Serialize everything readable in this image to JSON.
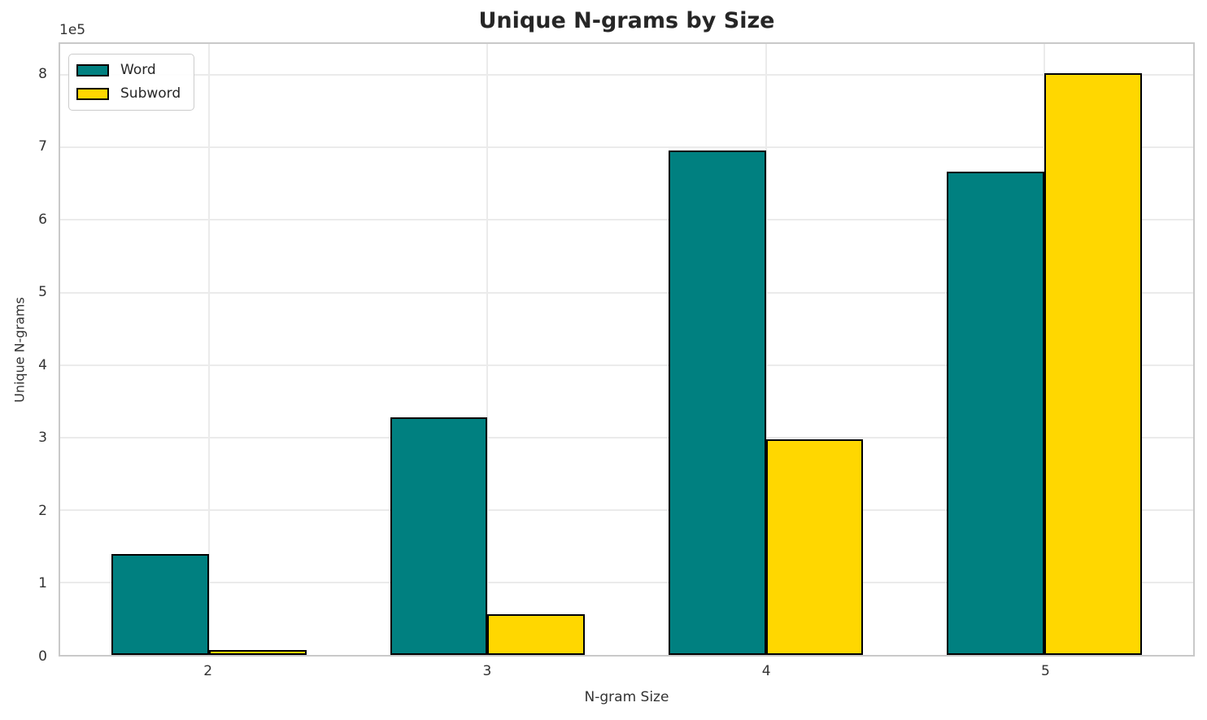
{
  "chart_data": {
    "type": "bar",
    "title": "Unique N-grams by Size",
    "xlabel": "N-gram Size",
    "ylabel": "Unique N-grams",
    "y_offset_label": "1e5",
    "categories": [
      "2",
      "3",
      "4",
      "5"
    ],
    "series": [
      {
        "name": "Word",
        "color": "#008080",
        "values": [
          139000,
          328000,
          696000,
          667000
        ]
      },
      {
        "name": "Subword",
        "color": "#FFD700",
        "values": [
          7000,
          56000,
          297000,
          803000
        ]
      }
    ],
    "ylim": [
      0,
      843000
    ],
    "yticks": [
      0,
      1,
      2,
      3,
      4,
      5,
      6,
      7,
      8
    ],
    "ytick_scale": 100000,
    "xlim": [
      1.465,
      5.535
    ],
    "bar_width_data_units": 0.35,
    "grid": true,
    "legend_position": "upper-left",
    "bar_edge_color": "#000000",
    "colors": {
      "word": "#008080",
      "subword": "#FFD700",
      "grid": "#ebebeb",
      "spine": "#c9c9c9"
    }
  }
}
